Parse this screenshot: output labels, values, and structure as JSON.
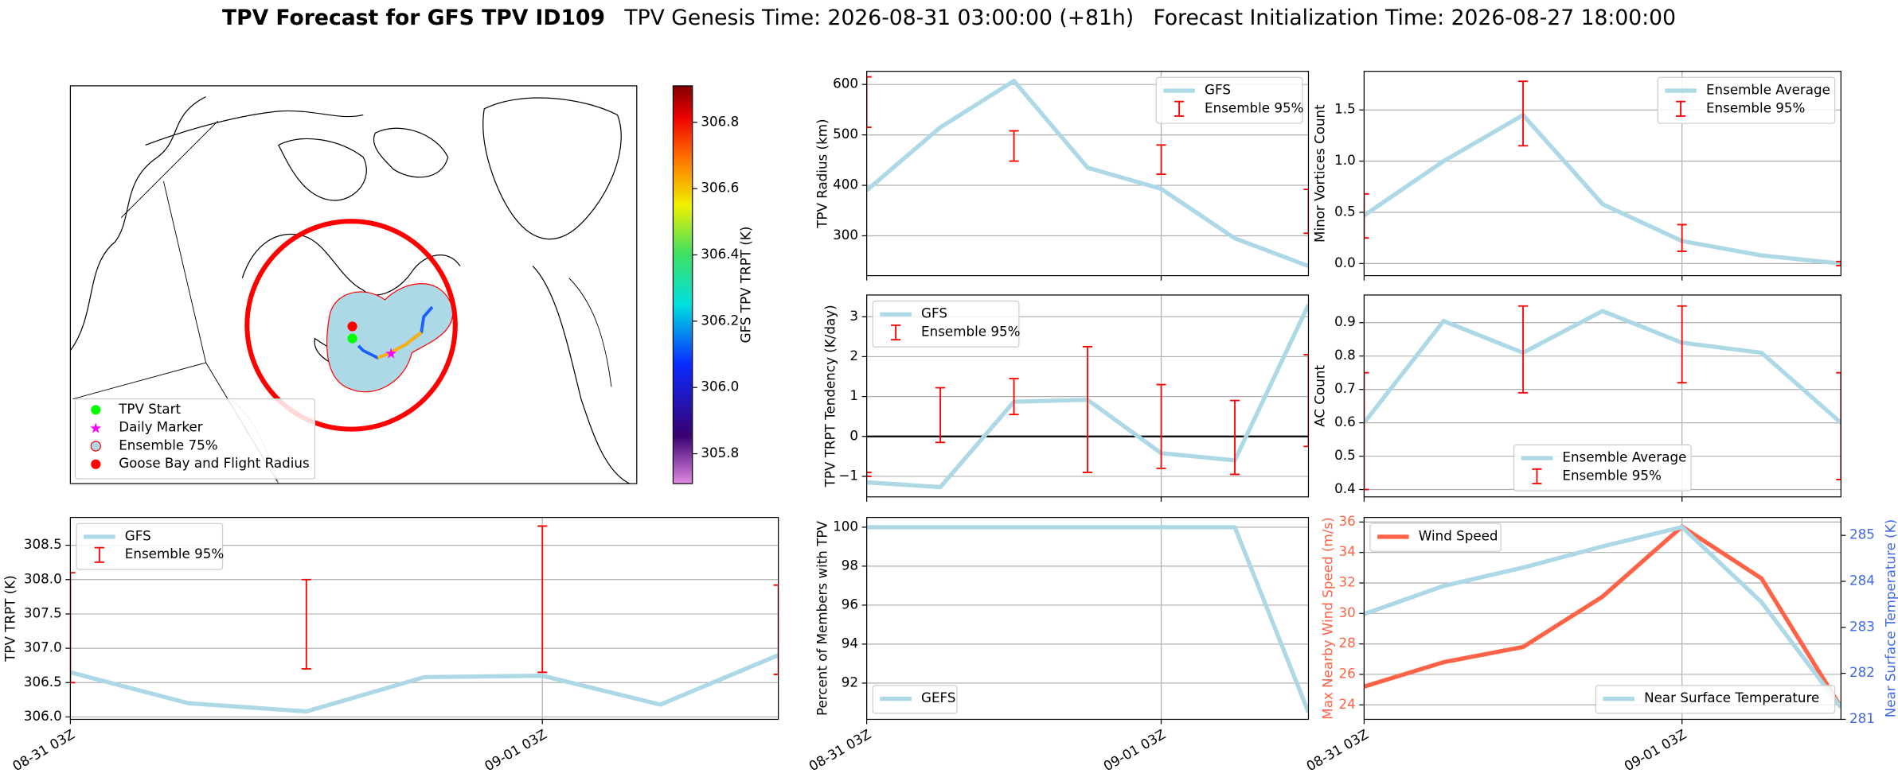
{
  "suptitle": [
    "TPV Forecast for GFS TPV ID109",
    "TPV Genesis Time: 2026-08-31 03:00:00 (+81h)",
    "Forecast Initialization Time: 2026-08-27 18:00:00"
  ],
  "chart_data": [
    {
      "type": "map",
      "legend": [
        {
          "name": "TPV Start",
          "color": "#00ff00",
          "marker": "circle"
        },
        {
          "name": "Daily Marker",
          "color": "#ff00ff",
          "marker": "star"
        },
        {
          "name": "Ensemble 75%",
          "color": "#add8e6",
          "marker": "circle"
        },
        {
          "name": "Goose Bay and Flight Radius",
          "color": "#ff0000",
          "marker": "circle"
        }
      ]
    },
    {
      "type": "colorbar",
      "label": "GFS TPV TRPT (K)",
      "ylim": [
        305.71,
        306.91
      ],
      "yticks": [
        305.8,
        {
          "value": 306.0,
          "label": "306.0"
        },
        306.2,
        306.4,
        306.6,
        306.8
      ]
    },
    {
      "type": "line",
      "ylabel": "TPV Radius (km)",
      "categories": [
        null,
        null,
        null,
        null,
        null,
        null,
        null
      ],
      "series": [
        {
          "name": "GFS",
          "color": "#add8e6",
          "values": [
            390,
            515,
            607,
            435,
            393,
            295,
            240
          ]
        }
      ],
      "errorbar": {
        "name": "Ensemble 95%",
        "color": "#ff0000",
        "low": [
          515,
          null,
          448,
          null,
          422,
          null,
          305
        ],
        "high": [
          615,
          null,
          508,
          null,
          480,
          null,
          392
        ]
      },
      "ylim": [
        221,
        626
      ],
      "yticks": [
        300,
        400,
        500,
        600
      ],
      "grid": true,
      "legend": "upper right"
    },
    {
      "type": "line",
      "ylabel": "Minor Vortices Count",
      "categories": [
        null,
        null,
        null,
        null,
        null,
        null,
        null
      ],
      "series": [
        {
          "name": "Ensemble Average",
          "color": "#add8e6",
          "values": [
            0.47,
            1.0,
            1.45,
            0.58,
            0.22,
            0.08,
            0.0
          ]
        }
      ],
      "errorbar": {
        "name": "Ensemble 95%",
        "color": "#ff0000",
        "low": [
          0.25,
          null,
          1.15,
          null,
          0.12,
          null,
          -0.02
        ],
        "high": [
          0.68,
          null,
          1.78,
          null,
          0.38,
          null,
          0.02
        ]
      },
      "ylim": [
        -0.118,
        1.877
      ],
      "yticks": [
        {
          "value": 0,
          "label": "0.0"
        },
        0.5,
        {
          "value": 1,
          "label": "1.0"
        },
        1.5
      ],
      "grid": true,
      "legend": "upper right"
    },
    {
      "type": "line",
      "ylabel": "TPV TRPT Tendency (K/day)",
      "categories": [
        null,
        null,
        null,
        null,
        null,
        null,
        null
      ],
      "series": [
        {
          "name": "GFS",
          "color": "#add8e6",
          "values": [
            -1.15,
            -1.27,
            0.87,
            0.92,
            -0.42,
            -0.6,
            3.3
          ]
        }
      ],
      "errorbar": {
        "name": "Ensemble 95%",
        "color": "#ff0000",
        "low": [
          -1.0,
          -0.15,
          0.55,
          -0.9,
          -0.8,
          -0.95,
          -0.25
        ],
        "high": [
          -0.9,
          1.22,
          1.45,
          2.25,
          1.3,
          0.9,
          2.05
        ]
      },
      "ylim": [
        -1.515,
        3.545
      ],
      "yticks": [
        {
          "value": -1,
          "label": "−1"
        },
        0,
        1,
        2,
        3
      ],
      "hline": 0,
      "grid": true,
      "legend": "upper left"
    },
    {
      "type": "line",
      "ylabel": "AC Count",
      "categories": [
        null,
        null,
        null,
        null,
        null,
        null,
        null
      ],
      "series": [
        {
          "name": "Ensemble Average",
          "color": "#add8e6",
          "values": [
            0.6,
            0.905,
            0.81,
            0.935,
            0.84,
            0.81,
            0.6
          ]
        }
      ],
      "errorbar": {
        "name": "Ensemble 95%",
        "color": "#ff0000",
        "low": [
          0.4,
          null,
          0.69,
          null,
          0.72,
          null,
          0.43
        ],
        "high": [
          0.75,
          null,
          0.95,
          null,
          0.95,
          null,
          0.75
        ]
      },
      "ylim": [
        0.378,
        0.983
      ],
      "yticks": [
        0.4,
        0.5,
        0.6,
        0.7,
        0.8,
        0.9
      ],
      "grid": true,
      "legend": "lower center"
    },
    {
      "type": "line",
      "ylabel": "TPV TRPT (K)",
      "categories": [
        "08-31 03Z",
        null,
        null,
        null,
        "09-01 03Z",
        null,
        null
      ],
      "series": [
        {
          "name": "GFS",
          "color": "#add8e6",
          "values": [
            306.65,
            306.2,
            306.08,
            306.58,
            306.6,
            306.18,
            306.9
          ]
        }
      ],
      "errorbar": {
        "name": "Ensemble 95%",
        "color": "#ff0000",
        "low": [
          306.5,
          null,
          306.7,
          null,
          306.65,
          null,
          306.62
        ],
        "high": [
          308.1,
          null,
          308.0,
          null,
          308.78,
          null,
          307.92
        ]
      },
      "ylim": [
        305.965,
        308.905
      ],
      "yticks": [
        {
          "value": 306,
          "label": "306.0"
        },
        306.5,
        {
          "value": 307,
          "label": "307.0"
        },
        307.5,
        {
          "value": 308,
          "label": "308.0"
        },
        308.5
      ],
      "grid": true,
      "legend": "upper left"
    },
    {
      "type": "line",
      "ylabel": "Percent of Members with TPV",
      "categories": [
        "08-31 03Z",
        null,
        null,
        null,
        "09-01 03Z",
        null,
        null
      ],
      "series": [
        {
          "name": "GEFS",
          "color": "#add8e6",
          "values": [
            100,
            100,
            100,
            100,
            100,
            100,
            90.5
          ]
        }
      ],
      "ylim": [
        90.14,
        100.5
      ],
      "yticks": [
        92,
        94,
        96,
        98,
        100
      ],
      "grid": true,
      "legend": "lower left"
    },
    {
      "type": "line",
      "ylabel": "Max Nearby Wind Speed (m/s)",
      "ylabel_color": "#ff6347",
      "y2label": "Near Surface Temperature (K)",
      "y2label_color": "#4169e1",
      "categories": [
        "08-31 03Z",
        null,
        null,
        null,
        "09-01 03Z",
        null,
        null
      ],
      "series": [
        {
          "name": "Wind Speed",
          "color": "#ff6347",
          "values": [
            25.2,
            26.8,
            27.8,
            31.1,
            35.7,
            32.3,
            23.85
          ],
          "legend": "upper left"
        },
        {
          "name": "Near Surface Temperature",
          "color": "#add8e6",
          "axis": "y2",
          "values": [
            283.29,
            283.9,
            284.3,
            284.76,
            285.18,
            283.55,
            281.26
          ],
          "legend": "lower right"
        }
      ],
      "ylim": [
        23.05,
        36.3
      ],
      "yticks": [
        24,
        26,
        28,
        30,
        32,
        34,
        36
      ],
      "y2lim": [
        281,
        285.39
      ],
      "y2ticks": [
        281,
        282,
        283,
        284,
        285
      ],
      "grid": true
    }
  ]
}
